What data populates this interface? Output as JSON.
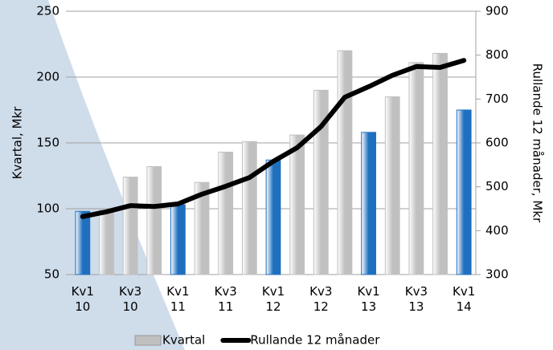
{
  "chart_data": {
    "type": "bar_line",
    "ylabel": "Kvartal, Mkr",
    "y2label": "Rullande 12 månader, Mkr",
    "categories": [
      "Kv1\n10",
      null,
      "Kv3\n10",
      null,
      "Kv1\n11",
      null,
      "Kv3\n11",
      null,
      "Kv1\n12",
      null,
      "Kv3\n12",
      null,
      "Kv1\n13",
      null,
      "Kv3\n13",
      null,
      "Kv1\n14"
    ],
    "series": [
      {
        "name": "Kvartal",
        "type": "bar",
        "color": "#c0c0c0",
        "point_colors": [
          "#1f6fbf",
          "#c0c0c0",
          "#c0c0c0",
          "#c0c0c0",
          "#1f6fbf",
          "#c0c0c0",
          "#c0c0c0",
          "#c0c0c0",
          "#1f6fbf",
          "#c0c0c0",
          "#c0c0c0",
          "#c0c0c0",
          "#1f6fbf",
          "#c0c0c0",
          "#c0c0c0",
          "#c0c0c0",
          "#1f6fbf"
        ],
        "values": [
          98,
          99,
          124,
          132,
          103,
          120,
          143,
          151,
          137,
          156,
          190,
          220,
          158,
          185,
          211,
          218,
          175
        ]
      },
      {
        "name": "Rullande 12 månader",
        "type": "line",
        "axis": "y2",
        "color": "#000000",
        "values": [
          432,
          443,
          457,
          455,
          461,
          483,
          501,
          521,
          558,
          589,
          637,
          704,
          728,
          754,
          774,
          772,
          788
        ]
      }
    ],
    "ylim": [
      50,
      250
    ],
    "yticks": [
      50,
      100,
      150,
      200,
      250
    ],
    "y2lim": [
      300,
      900
    ],
    "y2ticks": [
      300,
      400,
      500,
      600,
      700,
      800,
      900
    ],
    "grid": true
  }
}
